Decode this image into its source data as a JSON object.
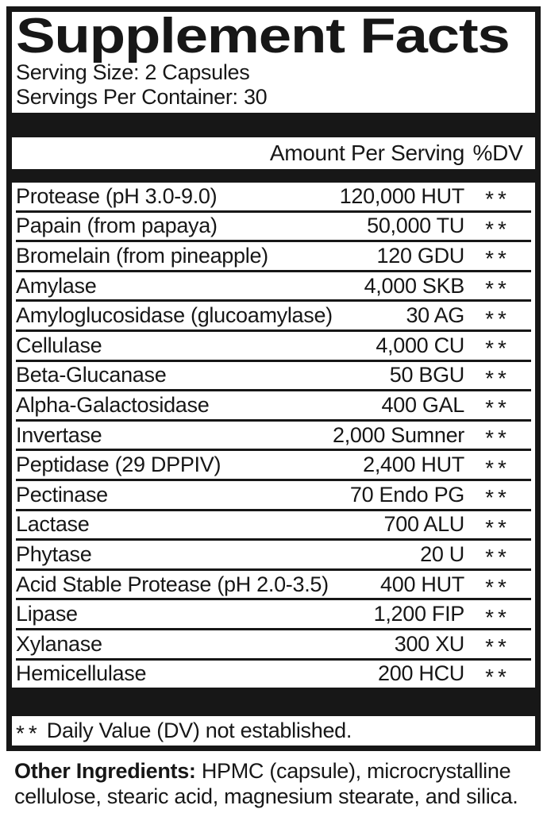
{
  "label": {
    "title": "Supplement Facts",
    "serving_size": "Serving Size: 2 Capsules",
    "servings_per_container": "Servings Per Container: 30",
    "columns": {
      "amount": "Amount Per Serving",
      "dv": "%DV"
    },
    "rows": [
      {
        "name": "Protease (pH 3.0-9.0)",
        "amount": "120,000 HUT",
        "dv": "**"
      },
      {
        "name": "Papain (from papaya)",
        "amount": "50,000 TU",
        "dv": "**"
      },
      {
        "name": "Bromelain (from pineapple)",
        "amount": "120 GDU",
        "dv": "**"
      },
      {
        "name": "Amylase",
        "amount": "4,000 SKB",
        "dv": "**"
      },
      {
        "name": "Amyloglucosidase (glucoamylase)",
        "amount": "30 AG",
        "dv": "**"
      },
      {
        "name": "Cellulase",
        "amount": "4,000 CU",
        "dv": "**"
      },
      {
        "name": "Beta-Glucanase",
        "amount": "50 BGU",
        "dv": "**"
      },
      {
        "name": "Alpha-Galactosidase",
        "amount": "400 GAL",
        "dv": "**"
      },
      {
        "name": "Invertase",
        "amount": "2,000 Sumner",
        "dv": "**"
      },
      {
        "name": "Peptidase (29 DPPIV)",
        "amount": "2,400 HUT",
        "dv": "**"
      },
      {
        "name": "Pectinase",
        "amount": "70 Endo PG",
        "dv": "**"
      },
      {
        "name": "Lactase",
        "amount": "700 ALU",
        "dv": "**"
      },
      {
        "name": "Phytase",
        "amount": "20 U",
        "dv": "**"
      },
      {
        "name": "Acid Stable Protease (pH 2.0-3.5)",
        "amount": "400 HUT",
        "dv": "**"
      },
      {
        "name": "Lipase",
        "amount": "1,200 FIP",
        "dv": "**"
      },
      {
        "name": "Xylanase",
        "amount": "300 XU",
        "dv": "**"
      },
      {
        "name": "Hemicellulase",
        "amount": "200 HCU",
        "dv": "**"
      }
    ],
    "footnote_marker": "**",
    "footnote": "Daily Value (DV) not established.",
    "other_ingredients_label": "Other Ingredients:",
    "other_ingredients_text": "HPMC (capsule), microcrystalline cellulose, stearic acid, magnesium stearate, and silica.",
    "colors": {
      "ink": "#171717",
      "background": "#ffffff"
    }
  }
}
